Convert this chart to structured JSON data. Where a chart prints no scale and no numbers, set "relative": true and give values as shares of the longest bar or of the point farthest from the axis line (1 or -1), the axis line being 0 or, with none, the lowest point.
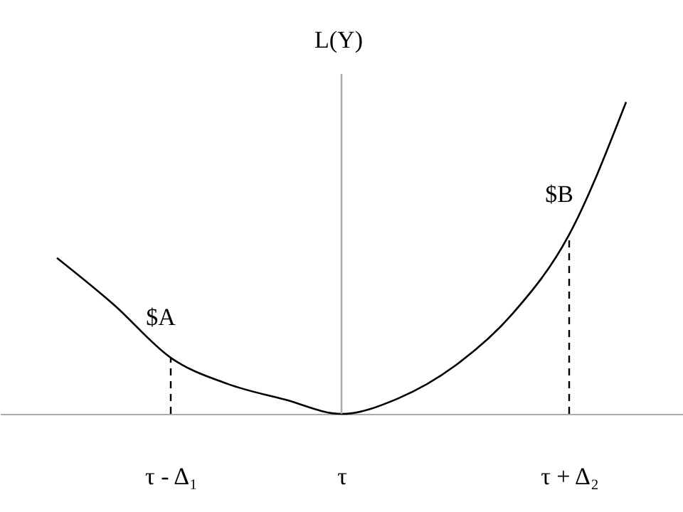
{
  "chart_data": {
    "type": "line",
    "ylabel": "L(Y)",
    "relative": true,
    "color": "#000000",
    "categories": [
      null,
      null,
      "τ - Δ₁",
      null,
      null,
      "τ",
      null,
      null,
      null,
      "τ + Δ₂",
      null
    ],
    "values": [
      0.5,
      0.35,
      0.18,
      0.096,
      0.046,
      0,
      0.05,
      0.155,
      0.32,
      0.575,
      1
    ],
    "ref_lines": [
      {
        "axis": "x",
        "value": "τ",
        "label": null,
        "color": "#aaaaaa",
        "line_style": "solid"
      },
      {
        "axis": "x",
        "value": "τ - Δ₁",
        "label": null,
        "color": "#000000",
        "line_style": "dashed"
      },
      {
        "axis": "x",
        "value": "τ + Δ₂",
        "label": null,
        "color": "#000000",
        "line_style": "dashed"
      }
    ],
    "annotations": [
      {
        "text": "$A",
        "x": "τ - Δ₁",
        "y": 0.18
      },
      {
        "text": "$B",
        "x": "τ + Δ₂",
        "y": 0.575
      }
    ],
    "grid": false,
    "marker": "none",
    "line_style": "solid"
  }
}
